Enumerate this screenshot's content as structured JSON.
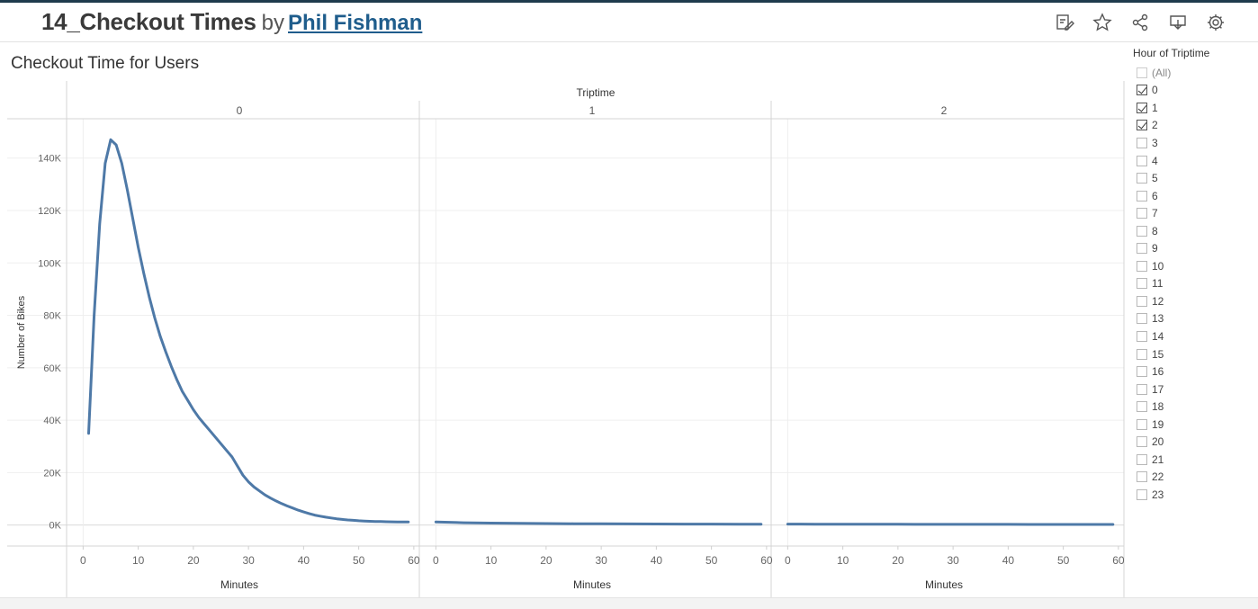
{
  "header": {
    "workbook_title": "14_Checkout Times",
    "by_label": "by",
    "author": "Phil Fishman",
    "toolbar_icons": [
      "edit-icon",
      "star-icon",
      "share-icon",
      "download-icon",
      "settings-icon"
    ]
  },
  "sheet_title": "Checkout Time for Users",
  "filter": {
    "title": "Hour of Triptime",
    "items": [
      {
        "label": "(All)",
        "checked": false
      },
      {
        "label": "0",
        "checked": true
      },
      {
        "label": "1",
        "checked": true
      },
      {
        "label": "2",
        "checked": true
      },
      {
        "label": "3",
        "checked": false
      },
      {
        "label": "4",
        "checked": false
      },
      {
        "label": "5",
        "checked": false
      },
      {
        "label": "6",
        "checked": false
      },
      {
        "label": "7",
        "checked": false
      },
      {
        "label": "8",
        "checked": false
      },
      {
        "label": "9",
        "checked": false
      },
      {
        "label": "10",
        "checked": false
      },
      {
        "label": "11",
        "checked": false
      },
      {
        "label": "12",
        "checked": false
      },
      {
        "label": "13",
        "checked": false
      },
      {
        "label": "14",
        "checked": false
      },
      {
        "label": "15",
        "checked": false
      },
      {
        "label": "16",
        "checked": false
      },
      {
        "label": "17",
        "checked": false
      },
      {
        "label": "18",
        "checked": false
      },
      {
        "label": "19",
        "checked": false
      },
      {
        "label": "20",
        "checked": false
      },
      {
        "label": "21",
        "checked": false
      },
      {
        "label": "22",
        "checked": false
      },
      {
        "label": "23",
        "checked": false
      }
    ]
  },
  "chart_data": {
    "type": "line",
    "facet_title": "Triptime",
    "xlabel": "Minutes",
    "ylabel": "Number of Bikes",
    "xlim": [
      -3,
      61
    ],
    "ylim": [
      -8000,
      155000
    ],
    "x_ticks": [
      0,
      10,
      20,
      30,
      40,
      50,
      60
    ],
    "y_ticks": [
      0,
      20000,
      40000,
      60000,
      80000,
      100000,
      120000,
      140000
    ],
    "y_tick_labels": [
      "0K",
      "20K",
      "40K",
      "60K",
      "80K",
      "100K",
      "120K",
      "140K"
    ],
    "color": "#4e79a7",
    "grid": true,
    "panels": [
      {
        "name": "0",
        "x": [
          1,
          2,
          3,
          4,
          5,
          6,
          7,
          8,
          9,
          10,
          11,
          12,
          13,
          14,
          15,
          16,
          17,
          18,
          19,
          20,
          21,
          22,
          23,
          24,
          25,
          26,
          27,
          28,
          29,
          30,
          31,
          32,
          33,
          34,
          35,
          36,
          37,
          38,
          39,
          40,
          41,
          42,
          43,
          44,
          45,
          46,
          47,
          48,
          49,
          50,
          51,
          52,
          53,
          54,
          55,
          56,
          57,
          58,
          59
        ],
        "y": [
          35000,
          80000,
          115000,
          138000,
          147000,
          145000,
          138000,
          128000,
          117000,
          106000,
          96000,
          87000,
          79000,
          72000,
          66000,
          60500,
          55500,
          51000,
          47500,
          44000,
          41000,
          38500,
          36000,
          33500,
          31000,
          28500,
          26000,
          22500,
          19000,
          16500,
          14500,
          13000,
          11500,
          10300,
          9200,
          8200,
          7300,
          6500,
          5700,
          5000,
          4400,
          3800,
          3400,
          3000,
          2700,
          2400,
          2150,
          1950,
          1800,
          1650,
          1550,
          1450,
          1380,
          1320,
          1270,
          1230,
          1200,
          1170,
          1150
        ]
      },
      {
        "name": "1",
        "x": [
          0,
          5,
          10,
          15,
          20,
          25,
          30,
          35,
          40,
          45,
          50,
          55,
          59
        ],
        "y": [
          1200,
          900,
          750,
          650,
          580,
          520,
          470,
          430,
          400,
          380,
          360,
          340,
          330
        ]
      },
      {
        "name": "2",
        "x": [
          0,
          5,
          10,
          15,
          20,
          25,
          30,
          35,
          40,
          45,
          50,
          55,
          59
        ],
        "y": [
          380,
          340,
          320,
          300,
          290,
          280,
          270,
          260,
          255,
          250,
          245,
          240,
          235
        ]
      }
    ]
  }
}
